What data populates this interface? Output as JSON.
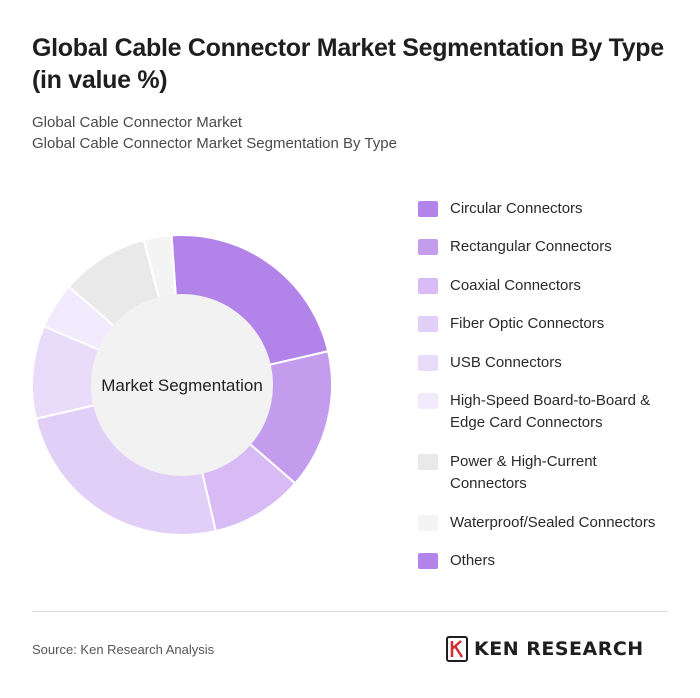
{
  "title": "Global Cable Connector Market Segmentation By Type (in value %)",
  "subtitle_1": "Global Cable Connector Market",
  "subtitle_2": "Global Cable Connector Market Segmentation By Type",
  "source": "Source: Ken Research Analysis",
  "brand": "KEN RESEARCH",
  "chart_data": {
    "type": "pie",
    "center_label": "Market Segmentation",
    "categories": [
      "Circular Connectors",
      "Rectangular Connectors",
      "Coaxial Connectors",
      "Fiber Optic Connectors",
      "USB Connectors",
      "High-Speed Board-to-Board & Edge Card Connectors",
      "Power & High-Current Connectors",
      "Waterproof/Sealed Connectors",
      "Others"
    ],
    "legend_lines": [
      [
        "Circular Connectors"
      ],
      [
        "Rectangular Connectors"
      ],
      [
        "Coaxial Connectors"
      ],
      [
        "Fiber Optic Connectors"
      ],
      [
        "USB Connectors"
      ],
      [
        "High-Speed Board-to-Board &",
        "Edge Card Connectors"
      ],
      [
        "Power & High-Current",
        "Connectors"
      ],
      [
        "Waterproof/Sealed Connectors"
      ],
      [
        "Others"
      ]
    ],
    "values": [
      22.5,
      15,
      10,
      25,
      10,
      5,
      9.5,
      3,
      0
    ],
    "colors": [
      "#b284ea",
      "#c49ced",
      "#d8bbf5",
      "#e2cff8",
      "#e9dcfa",
      "#f2ebfd",
      "#e9e9e9",
      "#f4f4f4",
      "#b284ea"
    ],
    "legend_position": "right"
  }
}
